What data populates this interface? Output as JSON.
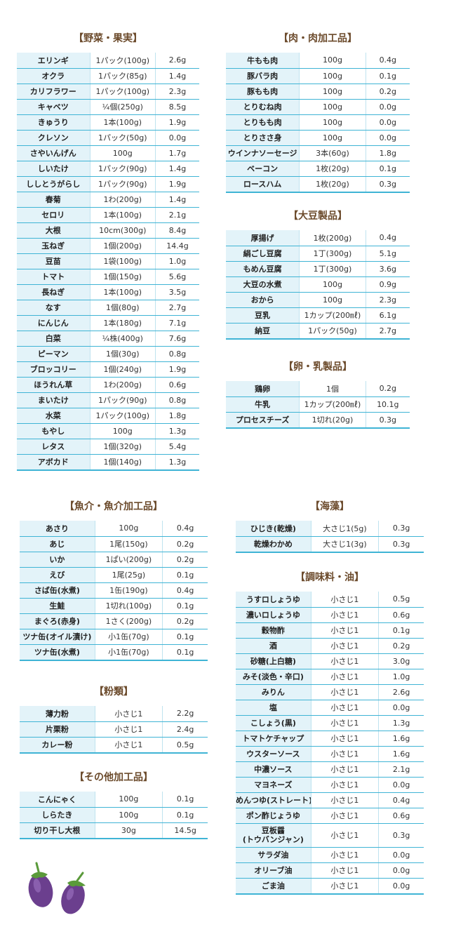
{
  "sections": [
    {
      "key": "vegetables",
      "title": "【野菜・果実】",
      "rows": [
        [
          "エリンギ",
          "1パック(100g)",
          "2.6g"
        ],
        [
          "オクラ",
          "1パック(85g)",
          "1.4g"
        ],
        [
          "カリフラワー",
          "1パック(100g)",
          "2.3g"
        ],
        [
          "キャベツ",
          "¼個(250g)",
          "8.5g"
        ],
        [
          "きゅうり",
          "1本(100g)",
          "1.9g"
        ],
        [
          "クレソン",
          "1パック(50g)",
          "0.0g"
        ],
        [
          "さやいんげん",
          "100g",
          "1.7g"
        ],
        [
          "しいたけ",
          "1パック(90g)",
          "1.4g"
        ],
        [
          "ししとうがらし",
          "1パック(90g)",
          "1.9g"
        ],
        [
          "春菊",
          "1わ(200g)",
          "1.4g"
        ],
        [
          "セロリ",
          "1本(100g)",
          "2.1g"
        ],
        [
          "大根",
          "10cm(300g)",
          "8.4g"
        ],
        [
          "玉ねぎ",
          "1個(200g)",
          "14.4g"
        ],
        [
          "豆苗",
          "1袋(100g)",
          "1.0g"
        ],
        [
          "トマト",
          "1個(150g)",
          "5.6g"
        ],
        [
          "長ねぎ",
          "1本(100g)",
          "3.5g"
        ],
        [
          "なす",
          "1個(80g)",
          "2.7g"
        ],
        [
          "にんじん",
          "1本(180g)",
          "7.1g"
        ],
        [
          "白菜",
          "¼株(400g)",
          "7.6g"
        ],
        [
          "ピーマン",
          "1個(30g)",
          "0.8g"
        ],
        [
          "ブロッコリー",
          "1個(240g)",
          "1.9g"
        ],
        [
          "ほうれん草",
          "1わ(200g)",
          "0.6g"
        ],
        [
          "まいたけ",
          "1パック(90g)",
          "0.8g"
        ],
        [
          "水菜",
          "1パック(100g)",
          "1.8g"
        ],
        [
          "もやし",
          "100g",
          "1.3g"
        ],
        [
          "レタス",
          "1個(320g)",
          "5.4g"
        ],
        [
          "アボカド",
          "1個(140g)",
          "1.3g"
        ]
      ]
    },
    {
      "key": "meat",
      "title": "【肉・肉加工品】",
      "rows": [
        [
          "牛もも肉",
          "100g",
          "0.4g"
        ],
        [
          "豚バラ肉",
          "100g",
          "0.1g"
        ],
        [
          "豚もも肉",
          "100g",
          "0.2g"
        ],
        [
          "とりむね肉",
          "100g",
          "0.0g"
        ],
        [
          "とりもも肉",
          "100g",
          "0.0g"
        ],
        [
          "とりささ身",
          "100g",
          "0.0g"
        ],
        [
          "ウインナソーセージ",
          "3本(60g)",
          "1.8g"
        ],
        [
          "ベーコン",
          "1枚(20g)",
          "0.1g"
        ],
        [
          "ロースハム",
          "1枚(20g)",
          "0.3g"
        ]
      ]
    },
    {
      "key": "soy",
      "title": "【大豆製品】",
      "rows": [
        [
          "厚揚げ",
          "1枚(200g)",
          "0.4g"
        ],
        [
          "絹ごし豆腐",
          "1丁(300g)",
          "5.1g"
        ],
        [
          "もめん豆腐",
          "1丁(300g)",
          "3.6g"
        ],
        [
          "大豆の水煮",
          "100g",
          "0.9g"
        ],
        [
          "おから",
          "100g",
          "2.3g"
        ],
        [
          "豆乳",
          "1カップ(200㎖)",
          "6.1g"
        ],
        [
          "納豆",
          "1パック(50g)",
          "2.7g"
        ]
      ]
    },
    {
      "key": "dairy",
      "title": "【卵・乳製品】",
      "rows": [
        [
          "鶏卵",
          "1個",
          "0.2g"
        ],
        [
          "牛乳",
          "1カップ(200㎖)",
          "10.1g"
        ],
        [
          "プロセスチーズ",
          "1切れ(20g)",
          "0.3g"
        ]
      ]
    },
    {
      "key": "seafood",
      "title": "【魚介・魚介加工品】",
      "rows": [
        [
          "あさり",
          "100g",
          "0.4g"
        ],
        [
          "あじ",
          "1尾(150g)",
          "0.2g"
        ],
        [
          "いか",
          "1ぱい(200g)",
          "0.2g"
        ],
        [
          "えび",
          "1尾(25g)",
          "0.1g"
        ],
        [
          "さば缶(水煮)",
          "1缶(190g)",
          "0.4g"
        ],
        [
          "生鮭",
          "1切れ(100g)",
          "0.1g"
        ],
        [
          "まぐろ(赤身)",
          "1さく(200g)",
          "0.2g"
        ],
        [
          "ツナ缶(オイル漬け)",
          "小1缶(70g)",
          "0.1g"
        ],
        [
          "ツナ缶(水煮)",
          "小1缶(70g)",
          "0.1g"
        ]
      ]
    },
    {
      "key": "flour",
      "title": "【粉類】",
      "rows": [
        [
          "薄力粉",
          "小さじ1",
          "2.2g"
        ],
        [
          "片栗粉",
          "小さじ1",
          "2.4g"
        ],
        [
          "カレー粉",
          "小さじ1",
          "0.5g"
        ]
      ]
    },
    {
      "key": "other",
      "title": "【その他加工品】",
      "rows": [
        [
          "こんにゃく",
          "100g",
          "0.1g"
        ],
        [
          "しらたき",
          "100g",
          "0.1g"
        ],
        [
          "切り干し大根",
          "30g",
          "14.5g"
        ]
      ]
    },
    {
      "key": "seaweed",
      "title": "【海藻】",
      "rows": [
        [
          "ひじき(乾燥)",
          "大さじ1(5g)",
          "0.3g"
        ],
        [
          "乾燥わかめ",
          "大さじ1(3g)",
          "0.3g"
        ]
      ]
    },
    {
      "key": "seasoning",
      "title": "【調味料・油】",
      "rows": [
        [
          "うすロしょうゆ",
          "小さじ1",
          "0.5g"
        ],
        [
          "濃いロしょうゆ",
          "小さじ1",
          "0.6g"
        ],
        [
          "穀物酢",
          "小さじ1",
          "0.1g"
        ],
        [
          "酒",
          "小さじ1",
          "0.2g"
        ],
        [
          "砂糖(上白糖)",
          "小さじ1",
          "3.0g"
        ],
        [
          "みそ(淡色・辛口)",
          "小さじ1",
          "1.0g"
        ],
        [
          "みりん",
          "小さじ1",
          "2.6g"
        ],
        [
          "塩",
          "小さじ1",
          "0.0g"
        ],
        [
          "こしょう(黒)",
          "小さじ1",
          "1.3g"
        ],
        [
          "トマトケチャップ",
          "小さじ1",
          "1.6g"
        ],
        [
          "ウスターソース",
          "小さじ1",
          "1.6g"
        ],
        [
          "中濃ソース",
          "小さじ1",
          "2.1g"
        ],
        [
          "マヨネーズ",
          "小さじ1",
          "0.0g"
        ],
        [
          "めんつゆ(ストレート)",
          "小さじ1",
          "0.4g"
        ],
        [
          "ポン酢じょうゆ",
          "小さじ1",
          "0.6g"
        ],
        [
          "豆板醤\n(トウバンジャン)",
          "小さじ1",
          "0.3g"
        ],
        [
          "サラダ油",
          "小さじ1",
          "0.0g"
        ],
        [
          "オリーブ油",
          "小さじ1",
          "0.0g"
        ],
        [
          "ごま油",
          "小さじ1",
          "0.0g"
        ]
      ]
    }
  ],
  "decoration": {
    "icon": "eggplant-icon",
    "body_color": "#6b3f8e",
    "cap_color": "#5a9a3a"
  }
}
